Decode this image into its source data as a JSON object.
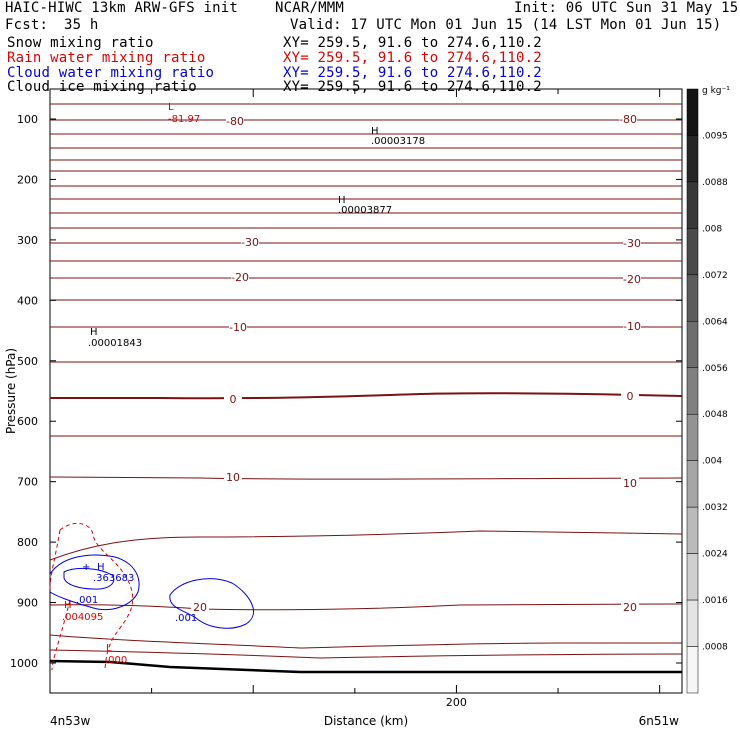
{
  "header": {
    "title_left": "HAIC-HIWC 13km ARW-GFS init",
    "agency": "NCAR/MMM",
    "init": "Init: 06 UTC Sun 31 May 15",
    "fcst_label": "Fcst:",
    "fcst_value": "35 h",
    "valid": "Valid: 17 UTC Mon 01 Jun 15 (14 LST Mon 01 Jun 15)"
  },
  "fields": [
    {
      "name": "Snow mixing ratio",
      "xy": "XY= 259.5, 91.6 to 274.6,110.2",
      "color": "#000000"
    },
    {
      "name": "Rain water mixing ratio",
      "xy": "XY= 259.5, 91.6 to 274.6,110.2",
      "color": "#e00000"
    },
    {
      "name": "Cloud water mixing ratio",
      "xy": "XY= 259.5, 91.6 to 274.6,110.2",
      "color": "#0000e0"
    },
    {
      "name": "Cloud ice mixing ratio",
      "xy": "XY= 259.5, 91.6 to 274.6,110.2",
      "color": "#000000"
    }
  ],
  "chart_data": {
    "type": "contour-cross-section",
    "ylabel": "Pressure (hPa)",
    "xlabel": "Distance (km)",
    "x_endpoints": [
      "4n53w",
      "6n51w"
    ],
    "xlim": [
      0,
      311
    ],
    "ylim": [
      1045,
      50
    ],
    "y_ticks": [
      100,
      200,
      300,
      400,
      500,
      600,
      700,
      800,
      900,
      1000
    ],
    "x_ticks": [
      200
    ],
    "colorbar": {
      "unit": "g kg⁻¹",
      "labels": [
        ".0095",
        ".0088",
        ".008",
        ".0072",
        ".0064",
        ".0056",
        ".0048",
        ".004",
        ".0032",
        ".0024",
        ".0016",
        ".0008"
      ],
      "levels": 12,
      "colors": [
        "#141414",
        "#262626",
        "#383838",
        "#4a4a4a",
        "#5c5c5c",
        "#6e6e6e",
        "#808080",
        "#939393",
        "#a6a6a6",
        "#bababa",
        "#cfcfcf",
        "#e4e4e4",
        "#f6f6f6"
      ]
    },
    "isotherm_color": "#7a1212",
    "isotherm_labels": [
      "-80",
      "-80",
      "-30",
      "-30",
      "-20",
      "-20",
      "-10",
      "-10",
      "0",
      "0",
      "10",
      "10",
      "20",
      "20"
    ],
    "annotations": [
      {
        "mark": "L",
        "value": "-81.97",
        "color": "#e00000"
      },
      {
        "mark": "H",
        "value": ".00003178",
        "color": "#000000"
      },
      {
        "mark": "H",
        "value": ".00003877",
        "color": "#000000"
      },
      {
        "mark": "H",
        "value": ".00001843",
        "color": "#000000"
      },
      {
        "mark": "H",
        "value": ".363683",
        "color": "#0000e0"
      },
      {
        "mark": "H",
        "value": ".004095",
        "color": "#e00000"
      },
      {
        "mark": "L",
        "value": ".000",
        "color": "#e00000"
      }
    ],
    "contour_values": [
      ".001",
      ".001",
      ".001"
    ]
  }
}
